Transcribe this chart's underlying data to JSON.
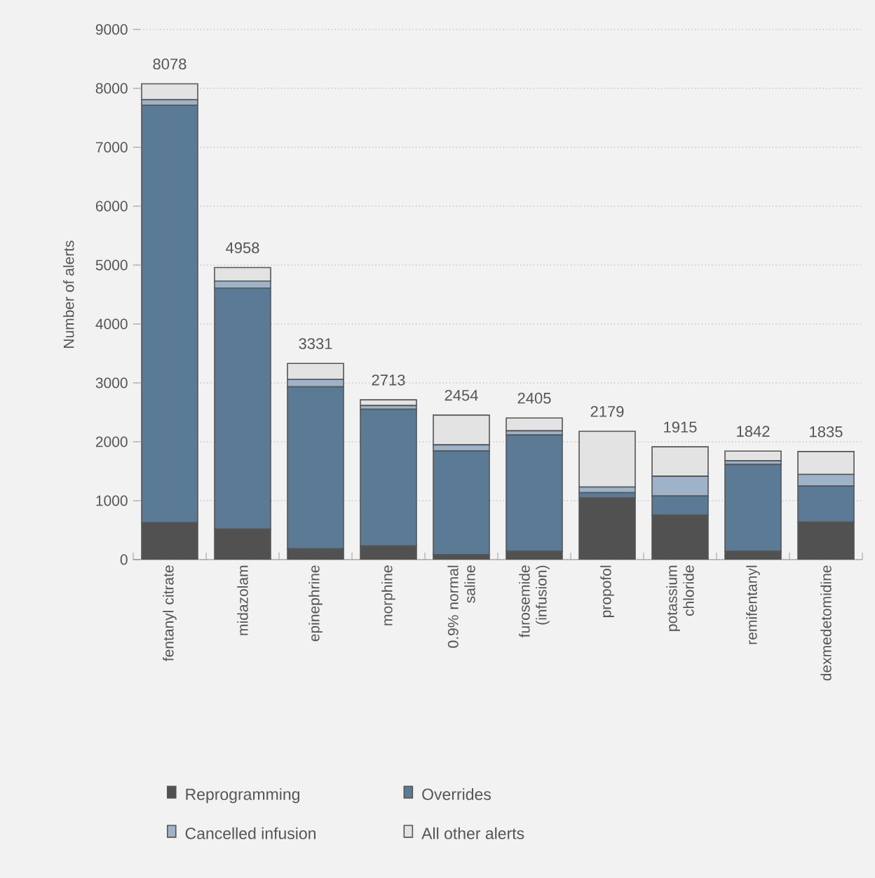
{
  "chart_data": {
    "type": "bar",
    "stacked": true,
    "ylabel": "Number of alerts",
    "categories": [
      "fentanyl citrate",
      "midazolam",
      "epinephrine",
      "morphine",
      "0.9% normal saline",
      "furosemide (infusion)",
      "propofol",
      "potassium chloride",
      "remifentanyl",
      "dexmedetomidine"
    ],
    "series": [
      {
        "name": "Reprogramming",
        "color": "#505150",
        "values": [
          628,
          517,
          183,
          231,
          87,
          143,
          1049,
          755,
          143,
          636
        ]
      },
      {
        "name": "Overrides",
        "color": "#5a7a96",
        "values": [
          7083,
          4093,
          2750,
          2321,
          1757,
          1971,
          88,
          326,
          1471,
          612
        ]
      },
      {
        "name": "Cancelled infusion",
        "color": "#9fb3c8",
        "values": [
          95,
          120,
          127,
          63,
          104,
          72,
          95,
          334,
          63,
          199
        ]
      },
      {
        "name": "All other alerts",
        "color": "#e3e3e3",
        "values": [
          272,
          228,
          271,
          98,
          506,
          219,
          947,
          500,
          165,
          388
        ]
      }
    ],
    "totals": [
      "8078",
      "4958",
      "3331",
      "2713",
      "2454",
      "2405",
      "2179",
      "1915",
      "1842",
      "1835"
    ],
    "ylim": [
      0,
      9000
    ],
    "yticks": [
      0,
      1000,
      2000,
      3000,
      4000,
      5000,
      6000,
      7000,
      8000,
      9000
    ],
    "grid": "y",
    "legend": "bottom"
  }
}
